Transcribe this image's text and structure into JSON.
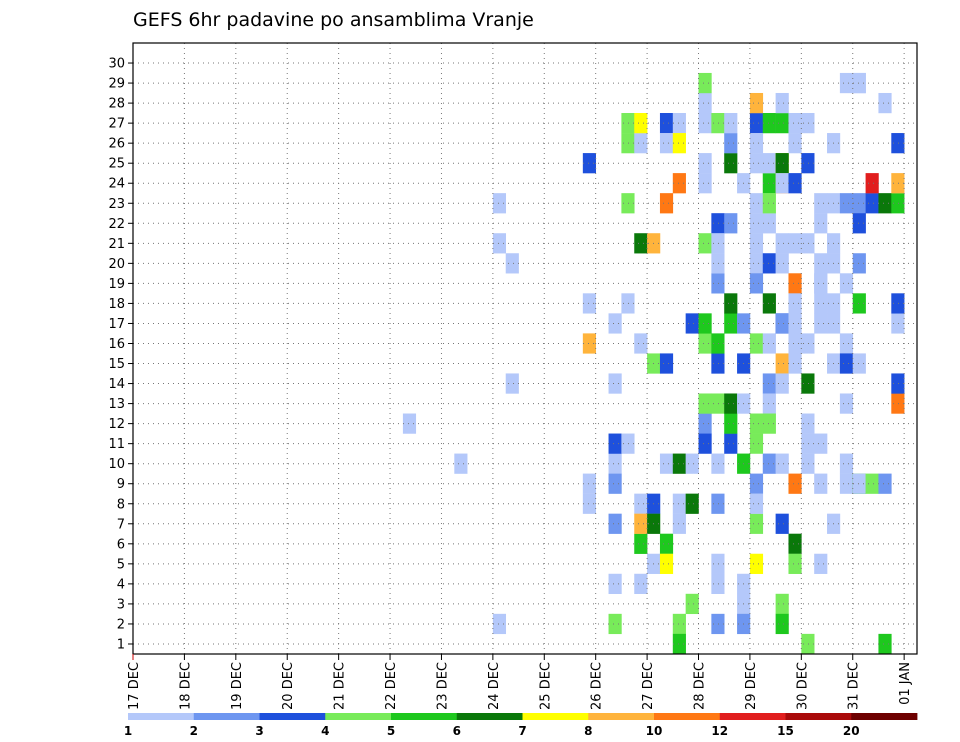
{
  "chart_data": {
    "type": "heatmap",
    "title": "GEFS 6hr padavine po ansamblima Vranje",
    "x": {
      "tick_labels": [
        "17 DEC",
        "18 DEC",
        "19 DEC",
        "20 DEC",
        "21 DEC",
        "22 DEC",
        "23 DEC",
        "24 DEC",
        "25 DEC",
        "26 DEC",
        "27 DEC",
        "28 DEC",
        "29 DEC",
        "30 DEC",
        "31 DEC",
        "01 JAN"
      ],
      "steps_per_day": 4,
      "total_steps": 61
    },
    "y": {
      "tick_labels": [
        "1",
        "2",
        "3",
        "4",
        "5",
        "6",
        "7",
        "8",
        "9",
        "10",
        "11",
        "12",
        "13",
        "14",
        "15",
        "16",
        "17",
        "18",
        "19",
        "20",
        "21",
        "22",
        "23",
        "24",
        "25",
        "26",
        "27",
        "28",
        "29",
        "30"
      ],
      "range": [
        0,
        30
      ]
    },
    "grid": true,
    "colorbar": {
      "labels": [
        "1",
        "2",
        "3",
        "4",
        "5",
        "6",
        "7",
        "8",
        "10",
        "12",
        "15",
        "20"
      ],
      "colors": [
        "#b4c8fa",
        "#6e96f0",
        "#1e50dc",
        "#78eb5a",
        "#1ec81e",
        "#0a780a",
        "#ffff00",
        "#ffb43c",
        "#ff7814",
        "#e11e1e",
        "#aa0a0a",
        "#6e0000"
      ]
    },
    "cells": [
      [
        21,
        11,
        0
      ],
      [
        25,
        9,
        0
      ],
      [
        28,
        22,
        0
      ],
      [
        29,
        13,
        0
      ],
      [
        29,
        19,
        0
      ],
      [
        28,
        20,
        0
      ],
      [
        28,
        1,
        0
      ],
      [
        35,
        15,
        7
      ],
      [
        35,
        24,
        2
      ],
      [
        35,
        17,
        0
      ],
      [
        35,
        8,
        0
      ],
      [
        35,
        7,
        0
      ],
      [
        37,
        9,
        0
      ],
      [
        37,
        3,
        0
      ],
      [
        37,
        6,
        1
      ],
      [
        37,
        13,
        0
      ],
      [
        37,
        10,
        2
      ],
      [
        37,
        16,
        0
      ],
      [
        37,
        8,
        1
      ],
      [
        37,
        1,
        3
      ],
      [
        38,
        17,
        0
      ],
      [
        38,
        25,
        3
      ],
      [
        38,
        26,
        3
      ],
      [
        38,
        22,
        3
      ],
      [
        38,
        10,
        0
      ],
      [
        39,
        15,
        0
      ],
      [
        39,
        7,
        0
      ],
      [
        39,
        25,
        0
      ],
      [
        39,
        3,
        0
      ],
      [
        39,
        5,
        4
      ],
      [
        39,
        20,
        5
      ],
      [
        39,
        26,
        6
      ],
      [
        39,
        6,
        7
      ],
      [
        40,
        7,
        2
      ],
      [
        40,
        6,
        5
      ],
      [
        40,
        4,
        0
      ],
      [
        40,
        20,
        7
      ],
      [
        40,
        14,
        3
      ],
      [
        41,
        26,
        2
      ],
      [
        41,
        14,
        2
      ],
      [
        41,
        5,
        4
      ],
      [
        41,
        4,
        6
      ],
      [
        41,
        22,
        8
      ],
      [
        41,
        25,
        0
      ],
      [
        41,
        9,
        0
      ],
      [
        42,
        1,
        3
      ],
      [
        42,
        0,
        4
      ],
      [
        42,
        26,
        0
      ],
      [
        42,
        25,
        6
      ],
      [
        42,
        23,
        8
      ],
      [
        42,
        6,
        0
      ],
      [
        42,
        9,
        5
      ],
      [
        42,
        7,
        0
      ],
      [
        43,
        7,
        5
      ],
      [
        43,
        2,
        3
      ],
      [
        43,
        16,
        2
      ],
      [
        43,
        9,
        0
      ],
      [
        44,
        11,
        1
      ],
      [
        44,
        12,
        3
      ],
      [
        44,
        20,
        3
      ],
      [
        44,
        23,
        0
      ],
      [
        44,
        27,
        0
      ],
      [
        44,
        15,
        3
      ],
      [
        44,
        16,
        4
      ],
      [
        44,
        10,
        2
      ],
      [
        44,
        26,
        0
      ],
      [
        44,
        24,
        0
      ],
      [
        44,
        28,
        3
      ],
      [
        45,
        14,
        2
      ],
      [
        45,
        1,
        1
      ],
      [
        45,
        12,
        3
      ],
      [
        45,
        21,
        2
      ],
      [
        45,
        15,
        4
      ],
      [
        45,
        4,
        0
      ],
      [
        45,
        18,
        1
      ],
      [
        45,
        26,
        3
      ],
      [
        45,
        7,
        1
      ],
      [
        45,
        19,
        0
      ],
      [
        45,
        9,
        0
      ],
      [
        45,
        3,
        0
      ],
      [
        45,
        20,
        0
      ],
      [
        46,
        10,
        2
      ],
      [
        46,
        11,
        4
      ],
      [
        46,
        12,
        5
      ],
      [
        46,
        16,
        4
      ],
      [
        46,
        24,
        5
      ],
      [
        46,
        17,
        5
      ],
      [
        46,
        25,
        1
      ],
      [
        46,
        26,
        0
      ],
      [
        46,
        21,
        1
      ],
      [
        47,
        2,
        0
      ],
      [
        47,
        9,
        4
      ],
      [
        47,
        16,
        1
      ],
      [
        47,
        14,
        2
      ],
      [
        47,
        23,
        0
      ],
      [
        47,
        3,
        0
      ],
      [
        47,
        12,
        0
      ],
      [
        47,
        1,
        1
      ],
      [
        48,
        10,
        3
      ],
      [
        48,
        22,
        0
      ],
      [
        48,
        20,
        0
      ],
      [
        48,
        15,
        3
      ],
      [
        48,
        19,
        0
      ],
      [
        48,
        26,
        2
      ],
      [
        48,
        27,
        7
      ],
      [
        48,
        18,
        1
      ],
      [
        48,
        8,
        1
      ],
      [
        48,
        24,
        0
      ],
      [
        48,
        11,
        3
      ],
      [
        48,
        21,
        0
      ],
      [
        48,
        25,
        0
      ],
      [
        48,
        6,
        3
      ],
      [
        48,
        4,
        6
      ],
      [
        48,
        7,
        0
      ],
      [
        49,
        21,
        0
      ],
      [
        49,
        23,
        4
      ],
      [
        49,
        24,
        0
      ],
      [
        49,
        19,
        2
      ],
      [
        49,
        13,
        1
      ],
      [
        49,
        26,
        4
      ],
      [
        49,
        22,
        3
      ],
      [
        49,
        12,
        0
      ],
      [
        49,
        15,
        0
      ],
      [
        49,
        17,
        5
      ],
      [
        49,
        9,
        1
      ],
      [
        49,
        11,
        3
      ],
      [
        50,
        14,
        7
      ],
      [
        50,
        6,
        2
      ],
      [
        50,
        16,
        2
      ],
      [
        50,
        2,
        3
      ],
      [
        50,
        23,
        8
      ],
      [
        50,
        1,
        4
      ],
      [
        50,
        16,
        1
      ],
      [
        50,
        20,
        0
      ],
      [
        50,
        26,
        4
      ],
      [
        50,
        24,
        6
      ],
      [
        50,
        24,
        5
      ],
      [
        50,
        23,
        0
      ],
      [
        50,
        9,
        0
      ],
      [
        50,
        19,
        0
      ],
      [
        50,
        13,
        0
      ],
      [
        50,
        27,
        0
      ],
      [
        51,
        8,
        8
      ],
      [
        51,
        5,
        5
      ],
      [
        51,
        18,
        8
      ],
      [
        51,
        23,
        2
      ],
      [
        51,
        15,
        0
      ],
      [
        51,
        26,
        0
      ],
      [
        51,
        17,
        0
      ],
      [
        51,
        25,
        0
      ],
      [
        51,
        20,
        0
      ],
      [
        51,
        16,
        0
      ],
      [
        51,
        14,
        0
      ],
      [
        51,
        4,
        3
      ],
      [
        52,
        24,
        2
      ],
      [
        52,
        20,
        0
      ],
      [
        52,
        15,
        0
      ],
      [
        52,
        0,
        3
      ],
      [
        52,
        26,
        0
      ],
      [
        52,
        9,
        0
      ],
      [
        52,
        13,
        5
      ],
      [
        52,
        11,
        0
      ],
      [
        52,
        10,
        0
      ],
      [
        53,
        21,
        0
      ],
      [
        53,
        19,
        0
      ],
      [
        53,
        17,
        0
      ],
      [
        53,
        18,
        0
      ],
      [
        53,
        22,
        0
      ],
      [
        53,
        4,
        0
      ],
      [
        53,
        18,
        0
      ],
      [
        53,
        16,
        0
      ],
      [
        53,
        10,
        0
      ],
      [
        53,
        8,
        0
      ],
      [
        54,
        20,
        0
      ],
      [
        54,
        6,
        0
      ],
      [
        54,
        17,
        0
      ],
      [
        54,
        16,
        0
      ],
      [
        54,
        22,
        0
      ],
      [
        54,
        25,
        0
      ],
      [
        54,
        14,
        0
      ],
      [
        54,
        19,
        0
      ],
      [
        55,
        9,
        0
      ],
      [
        55,
        22,
        1
      ],
      [
        55,
        18,
        0
      ],
      [
        55,
        8,
        0
      ],
      [
        55,
        15,
        0
      ],
      [
        55,
        28,
        0
      ],
      [
        55,
        14,
        2
      ],
      [
        55,
        12,
        0
      ],
      [
        56,
        22,
        1
      ],
      [
        56,
        28,
        0
      ],
      [
        56,
        17,
        4
      ],
      [
        56,
        19,
        1
      ],
      [
        56,
        14,
        0
      ],
      [
        56,
        8,
        4
      ],
      [
        56,
        21,
        2
      ],
      [
        56,
        28,
        0
      ],
      [
        56,
        8,
        0
      ],
      [
        57,
        8,
        3
      ],
      [
        57,
        22,
        2
      ],
      [
        57,
        23,
        9
      ],
      [
        58,
        8,
        1
      ],
      [
        58,
        22,
        5
      ],
      [
        58,
        0,
        4
      ],
      [
        58,
        27,
        0
      ],
      [
        59,
        22,
        4
      ],
      [
        59,
        23,
        7
      ],
      [
        59,
        16,
        0
      ],
      [
        59,
        12,
        8
      ],
      [
        59,
        25,
        2
      ],
      [
        59,
        17,
        2
      ],
      [
        59,
        13,
        2
      ]
    ]
  }
}
